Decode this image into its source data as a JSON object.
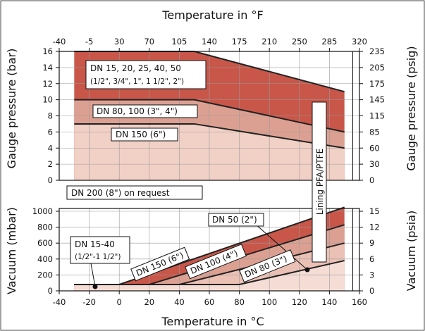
{
  "chart_data": [
    {
      "type": "area",
      "name": "pressure",
      "x_top_title": "Temperature in °F",
      "ylabel_left": "Gauge pressure (bar)",
      "ylabel_right": "Gauge pressure (psig)",
      "x_top_ticks": [
        "-40",
        "-5",
        "30",
        "70",
        "105",
        "140",
        "175",
        "210",
        "250",
        "285",
        "320"
      ],
      "y_left_ticks": [
        "0",
        "2",
        "4",
        "6",
        "8",
        "10",
        "12",
        "14",
        "16"
      ],
      "y_right_ticks": [
        "0",
        "30",
        "60",
        "85",
        "115",
        "145",
        "175",
        "205",
        "235"
      ],
      "xlim": [
        -40,
        160
      ],
      "ylim": [
        0,
        16
      ],
      "series": [
        {
          "name": "DN 15, 20, 25, 40, 50",
          "x": [
            -30,
            50,
            150
          ],
          "y": [
            16,
            16,
            11
          ],
          "color": "#c8574a"
        },
        {
          "name": "DN 80, 100 (3\", 4\")",
          "x": [
            -30,
            50,
            150
          ],
          "y": [
            10,
            10,
            6
          ],
          "color": "#dca092"
        },
        {
          "name": "DN 150 (6\")",
          "x": [
            -30,
            50,
            150
          ],
          "y": [
            7,
            7,
            4
          ],
          "color": "#f1d0c6"
        }
      ],
      "labels": {
        "dn15": "DN 15, 20, 25, 40, 50",
        "dn15_sub": "(1/2\", 3/4\", 1\", 1 1/2\", 2\")",
        "dn80": "DN 80, 100 (3\", 4\")",
        "dn150": "DN 150 (6\")",
        "dn200": "DN 200 (8\") on request",
        "lining": "Lining PFA/PTFE"
      }
    },
    {
      "type": "area",
      "name": "vacuum",
      "xlabel": "Temperature in °C",
      "ylabel_left": "Vacuum (mbar)",
      "ylabel_right": "Vacuum (psia)",
      "x_ticks": [
        "-40",
        "-20",
        "0",
        "20",
        "40",
        "60",
        "80",
        "100",
        "120",
        "140",
        "160"
      ],
      "y_left_ticks": [
        "0",
        "200",
        "400",
        "600",
        "800",
        "1000"
      ],
      "y_right_ticks": [
        "0",
        "3",
        "6",
        "9",
        "12",
        "15"
      ],
      "xlim": [
        -40,
        160
      ],
      "ylim": [
        0,
        1000
      ],
      "series": [
        {
          "name": "DN 150 (6\")",
          "x": [
            -30,
            0,
            150
          ],
          "y": [
            80,
            80,
            1050
          ],
          "color": "#c8574a"
        },
        {
          "name": "DN 100 (4\")",
          "x": [
            -30,
            20,
            150
          ],
          "y": [
            80,
            80,
            830
          ],
          "color": "#dca092"
        },
        {
          "name": "DN 80 (3\")",
          "x": [
            -30,
            40,
            150
          ],
          "y": [
            80,
            80,
            600
          ],
          "color": "#ecc1b5"
        },
        {
          "name": "DN 50 (2\")",
          "x": [
            -30,
            80,
            150
          ],
          "y": [
            80,
            80,
            380
          ],
          "color": "#f5ddd6"
        }
      ],
      "labels": {
        "dn50": "DN 50 (2\")",
        "dn15_40": "DN 15-40",
        "dn15_40_sub": "(1/2\"-1 1/2\")",
        "dn150": "DN 150 (6\")",
        "dn100": "DN 100 (4\")",
        "dn80": "DN 80 (3\")"
      }
    }
  ]
}
